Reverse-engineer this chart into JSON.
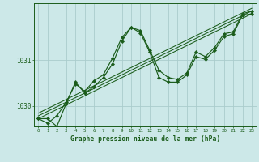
{
  "background_color": "#cce8e8",
  "plot_bg_color": "#cce8e8",
  "grid_color": "#aacccc",
  "line_color": "#1a5c1a",
  "title": "Graphe pression niveau de la mer (hPa)",
  "yticks": [
    1030,
    1031
  ],
  "xlim": [
    -0.5,
    23.5
  ],
  "ylim": [
    1029.55,
    1032.25
  ],
  "series1_x": [
    0,
    1,
    2,
    3,
    4,
    5,
    6,
    7,
    8,
    9,
    10,
    11,
    12,
    13,
    14,
    15,
    16,
    17,
    18,
    19,
    20,
    21,
    22,
    23
  ],
  "series1_y": [
    1029.72,
    1029.72,
    1029.55,
    1030.05,
    1030.52,
    1030.28,
    1030.42,
    1030.62,
    1030.92,
    1031.42,
    1031.72,
    1031.65,
    1031.22,
    1030.78,
    1030.62,
    1030.58,
    1030.72,
    1031.18,
    1031.08,
    1031.28,
    1031.58,
    1031.62,
    1032.02,
    1032.08
  ],
  "series2_x": [
    0,
    1,
    2,
    3,
    4,
    5,
    6,
    7,
    8,
    9,
    10,
    11,
    12,
    13,
    14,
    15,
    16,
    17,
    18,
    19,
    20,
    21,
    22,
    23
  ],
  "series2_y": [
    1029.72,
    1029.62,
    1029.78,
    1030.08,
    1030.48,
    1030.32,
    1030.55,
    1030.68,
    1031.05,
    1031.5,
    1031.72,
    1031.6,
    1031.18,
    1030.62,
    1030.52,
    1030.52,
    1030.68,
    1031.08,
    1031.02,
    1031.22,
    1031.52,
    1031.58,
    1031.98,
    1032.02
  ],
  "linear_lines": [
    {
      "x0": 0,
      "y0": 1029.72,
      "x1": 23,
      "y1": 1032.02
    },
    {
      "x0": 0,
      "y0": 1029.78,
      "x1": 23,
      "y1": 1032.08
    },
    {
      "x0": 0,
      "y0": 1029.84,
      "x1": 23,
      "y1": 1032.14
    }
  ]
}
